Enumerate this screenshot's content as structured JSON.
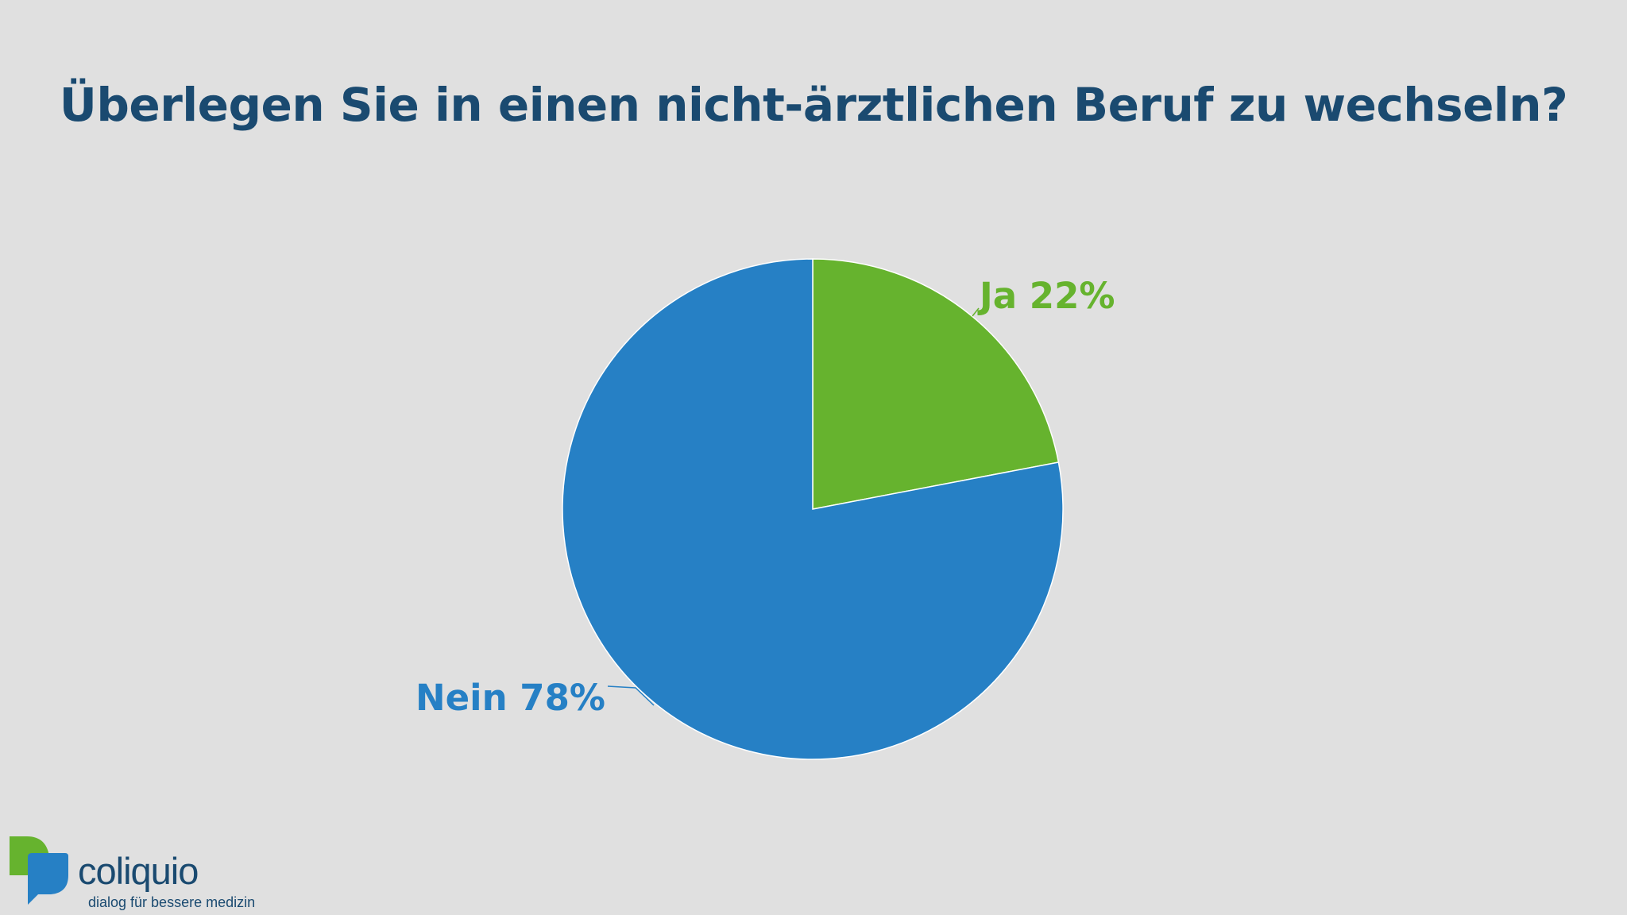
{
  "title": "Überlegen Sie in einen nicht-ärztlichen Beruf zu wechseln?",
  "chart_data": {
    "type": "pie",
    "title": "Überlegen Sie in einen nicht-ärztlichen Beruf zu wechseln?",
    "slices": [
      {
        "label": "Ja",
        "value": 22,
        "display": "Ja 22%",
        "color": "#66b32e"
      },
      {
        "label": "Nein",
        "value": 78,
        "display": "Nein 78%",
        "color": "#2680c5"
      }
    ],
    "start": "12 o'clock, clockwise"
  },
  "logo": {
    "name": "coliquio",
    "tagline": "dialog für bessere medizin",
    "colors": {
      "green": "#66b32e",
      "blue": "#2680c5",
      "text": "#1a4a70"
    }
  }
}
